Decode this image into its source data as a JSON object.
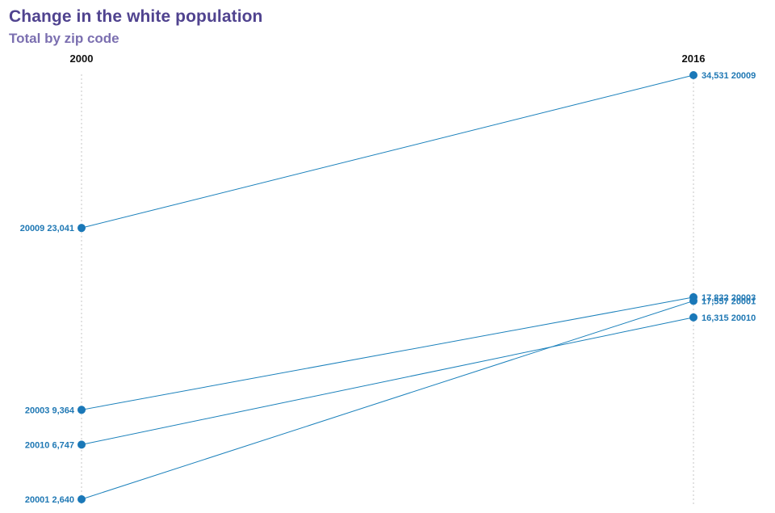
{
  "header": {
    "title": "Change in the white population",
    "subtitle": "Total by zip code"
  },
  "chart_data": {
    "type": "line",
    "title": "Change in the white population",
    "subtitle": "Total by zip code",
    "x": [
      "2000",
      "2016"
    ],
    "series": [
      {
        "name": "20009",
        "values": [
          23041,
          34531
        ],
        "labels": [
          "20009 23,041",
          "34,531 20009"
        ]
      },
      {
        "name": "20003",
        "values": [
          9364,
          17832
        ],
        "labels": [
          "20003 9,364",
          "17,832 20003"
        ]
      },
      {
        "name": "20001",
        "values": [
          2640,
          17557
        ],
        "labels": [
          "20001 2,640",
          "17,557 20001"
        ]
      },
      {
        "name": "20010",
        "values": [
          6747,
          16315
        ],
        "labels": [
          "20010 6,747",
          "16,315 20010"
        ]
      }
    ],
    "ylim": [
      2640,
      34531
    ],
    "grid": false,
    "legend": "none",
    "colors": {
      "line": "#1a80bb",
      "dot": "#1a78b8",
      "label": "#1f78b4",
      "title": "#50438f",
      "subtitle": "#7b6fb0"
    }
  }
}
